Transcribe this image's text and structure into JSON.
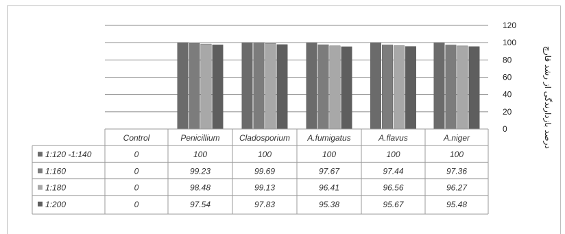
{
  "chart_data": {
    "type": "bar",
    "categories": [
      "Control",
      "Penicillium",
      "Cladosporium",
      "A.fumigatus",
      "A.flavus",
      "A.niger"
    ],
    "series": [
      {
        "name": "1:120 -1:140",
        "color": "#6b6b6b",
        "values": [
          0,
          100,
          100,
          100,
          100,
          100
        ],
        "labels": [
          "0",
          "100",
          "100",
          "100",
          "100",
          "100"
        ]
      },
      {
        "name": "1:160",
        "color": "#7c7c7c",
        "values": [
          0,
          99.23,
          99.69,
          97.67,
          97.44,
          97.36
        ],
        "labels": [
          "0",
          "99.23",
          "99.69",
          "97.67",
          "97.44",
          "97.36"
        ]
      },
      {
        "name": "1:180",
        "color": "#a8a8a8",
        "values": [
          0,
          98.48,
          99.13,
          96.41,
          96.56,
          96.27
        ],
        "labels": [
          "0",
          "98.48",
          "99.13",
          "96.41",
          "96.56",
          "96.27"
        ]
      },
      {
        "name": "1:200",
        "color": "#5e5e5e",
        "values": [
          0,
          97.54,
          97.83,
          95.38,
          95.67,
          95.48
        ],
        "labels": [
          "0",
          "97.54",
          "97.83",
          "95.38",
          "95.67",
          "95.48"
        ]
      }
    ],
    "ylim": [
      0,
      120
    ],
    "yticks": [
      "0",
      "20",
      "40",
      "60",
      "80",
      "100",
      "120"
    ],
    "ylabel": "درصد بازدارندگی از رشد قارچ",
    "grid": true,
    "data_table": true
  }
}
